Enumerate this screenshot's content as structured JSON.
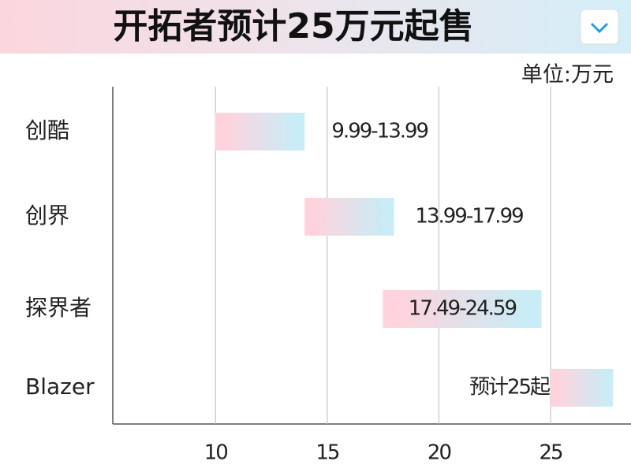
{
  "chart_data": {
    "type": "range-bar",
    "title": "开拓者预计25万元起售",
    "unit_label": "单位:万元",
    "categories": [
      "创酷",
      "创界",
      "探界者",
      "Blazer"
    ],
    "low": [
      9.99,
      13.99,
      17.49,
      25
    ],
    "high": [
      13.99,
      17.99,
      24.59,
      27.8
    ],
    "value_labels": [
      "9.99-13.99",
      "13.99-17.99",
      "17.49-24.59",
      "预计25起"
    ],
    "xlim": [
      5.4,
      28.6
    ],
    "xticks": [
      10,
      15,
      20,
      25
    ],
    "grid": true,
    "colors": [
      "#ffd3dd",
      "#c9ecf6"
    ]
  }
}
